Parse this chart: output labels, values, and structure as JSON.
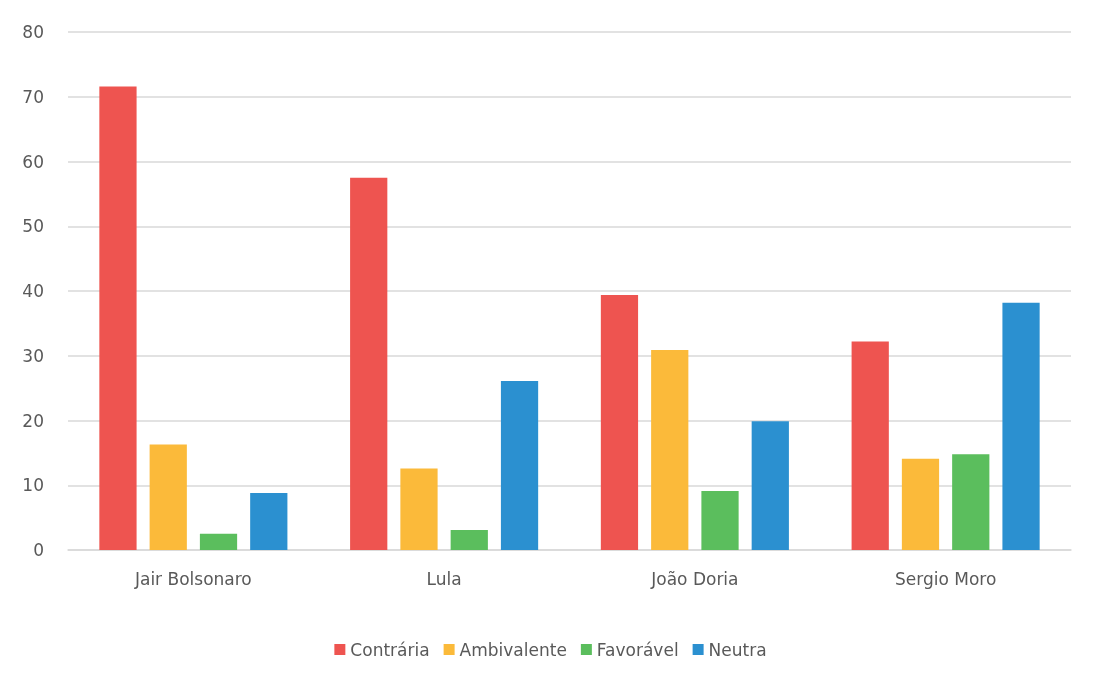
{
  "chart_data": {
    "type": "bar",
    "categories": [
      "Jair Bolsonaro",
      "Lula",
      "João Doria",
      "Sergio Moro"
    ],
    "series": [
      {
        "name": "Contrária",
        "color": "#ee5450",
        "values": [
          71.6,
          57.5,
          39.4,
          32.2
        ]
      },
      {
        "name": "Ambivalente",
        "color": "#fbba3a",
        "values": [
          16.3,
          12.6,
          30.9,
          14.1
        ]
      },
      {
        "name": "Favorável",
        "color": "#5bbe5d",
        "values": [
          2.5,
          3.1,
          9.1,
          14.8
        ]
      },
      {
        "name": "Neutra",
        "color": "#2b90d0",
        "values": [
          8.8,
          26.1,
          19.9,
          38.2
        ]
      }
    ],
    "ylim": [
      0,
      80
    ],
    "yticks": [
      0,
      10,
      20,
      30,
      40,
      50,
      60,
      70,
      80
    ],
    "grid": "y",
    "legend": "bottom"
  }
}
